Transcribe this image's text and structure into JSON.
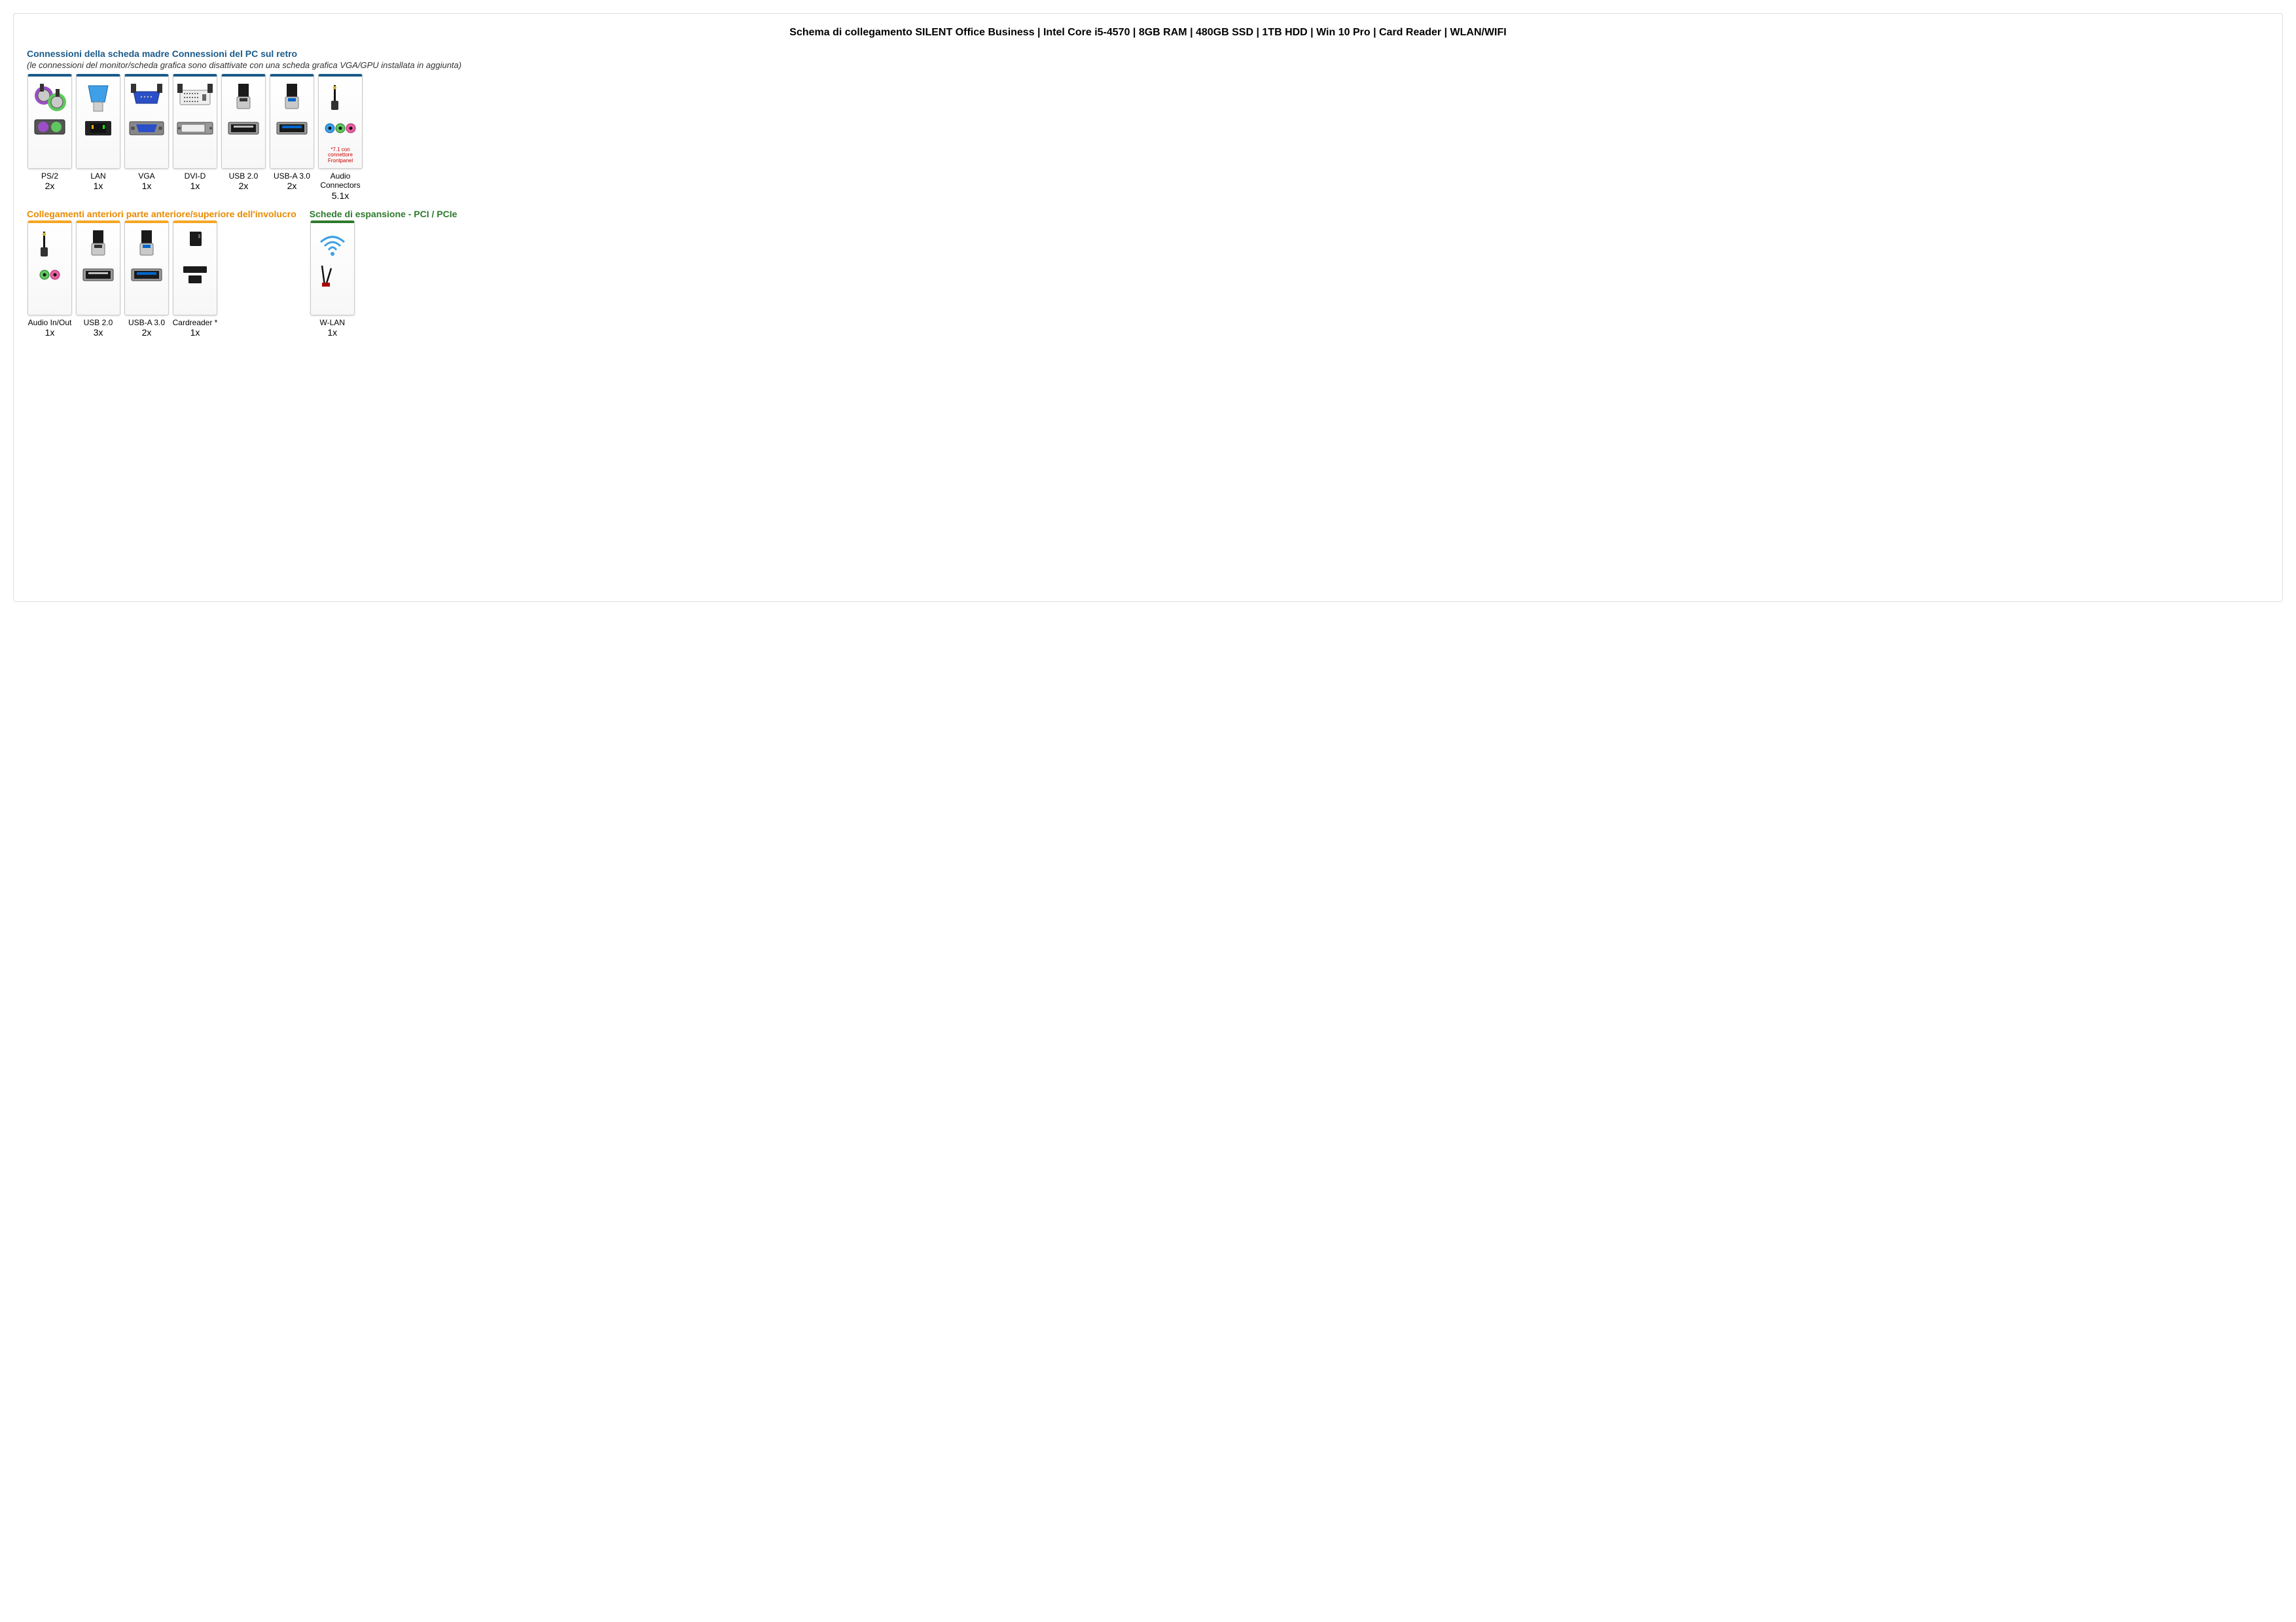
{
  "main_title": "Schema di collegamento SILENT Office Business | Intel Core i5-4570 | 8GB RAM | 480GB SSD | 1TB HDD | Win 10 Pro | Card Reader | WLAN/WIFI",
  "colors": {
    "section_rear": "#1a5a8a",
    "section_front": "#e88a00",
    "section_expansion": "#2d7a2d",
    "card_border": "#cccccc",
    "note_text": "#c00000"
  },
  "sections": {
    "rear": {
      "title": "Connessioni della scheda madre Connessioni del PC sul retro",
      "subtitle": "(le connessioni del monitor/scheda grafica sono disattivate con una scheda grafica VGA/GPU installata in aggiunta)",
      "border_color": "#1a5a8a",
      "items": [
        {
          "label": "PS/2",
          "qty": "2x",
          "icon": "ps2",
          "note": ""
        },
        {
          "label": "LAN",
          "qty": "1x",
          "icon": "lan",
          "note": ""
        },
        {
          "label": "VGA",
          "qty": "1x",
          "icon": "vga",
          "note": ""
        },
        {
          "label": "DVI-D",
          "qty": "1x",
          "icon": "dvi",
          "note": ""
        },
        {
          "label": "USB 2.0",
          "qty": "2x",
          "icon": "usb2",
          "note": ""
        },
        {
          "label": "USB-A 3.0",
          "qty": "2x",
          "icon": "usb3",
          "note": ""
        },
        {
          "label": "Audio Connectors",
          "qty": "5.1x",
          "icon": "audio3",
          "note": "*7.1 con connettore Frontpanel"
        }
      ]
    },
    "front": {
      "title": "Collegamenti anteriori parte anteriore/superiore dell'involucro",
      "border_color": "#f5a623",
      "items": [
        {
          "label": "Audio In/Out",
          "qty": "1x",
          "icon": "audio2",
          "note": ""
        },
        {
          "label": "USB 2.0",
          "qty": "3x",
          "icon": "usb2",
          "note": ""
        },
        {
          "label": "USB-A 3.0",
          "qty": "2x",
          "icon": "usb3",
          "note": ""
        },
        {
          "label": "Cardreader *",
          "qty": "1x",
          "icon": "cardreader",
          "note": ""
        }
      ]
    },
    "expansion": {
      "title": "Schede di espansione - PCI / PCIe",
      "border_color": "#2d7a2d",
      "items": [
        {
          "label": "W-LAN",
          "qty": "1x",
          "icon": "wlan",
          "note": ""
        }
      ]
    }
  }
}
